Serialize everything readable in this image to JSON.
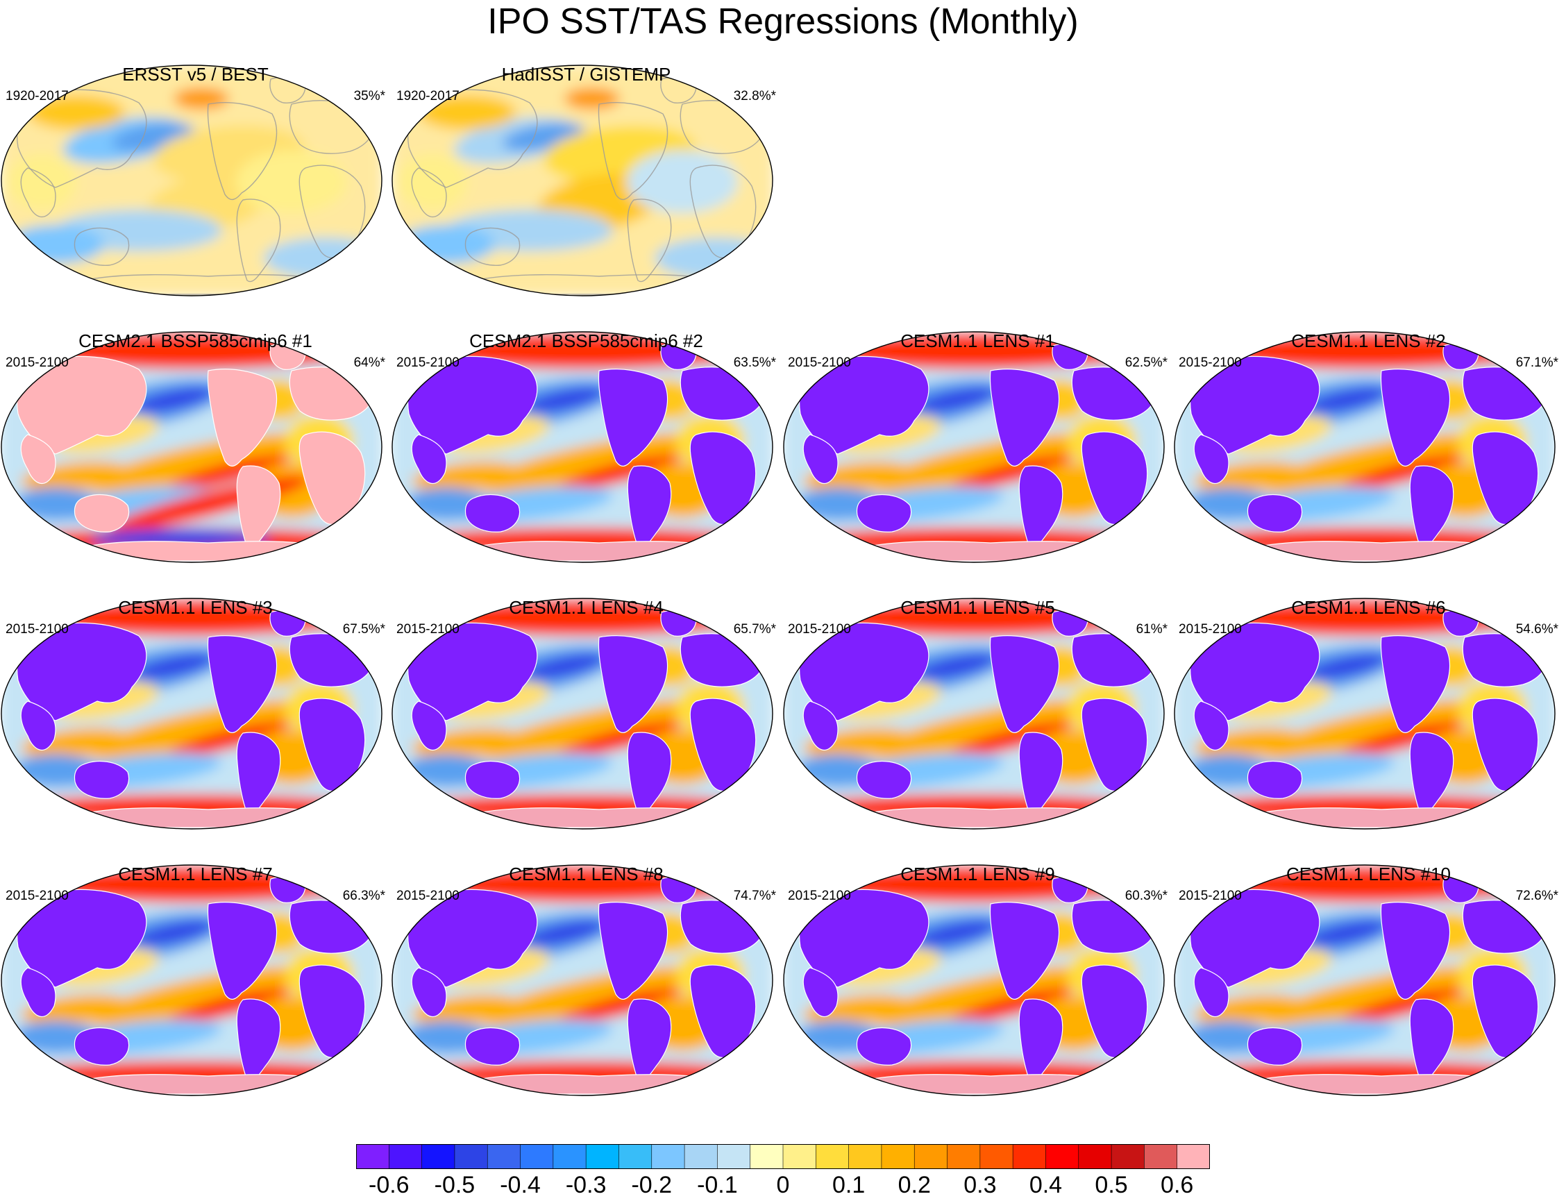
{
  "title": "IPO SST/TAS Regressions (Monthly)",
  "panels": [
    {
      "title": "ERSST v5 / BEST",
      "period": "1920-2017",
      "variance": "35%*",
      "row": 0,
      "col": 0,
      "pattern": "obs_a"
    },
    {
      "title": "HadISST / GISTEMP",
      "period": "1920-2017",
      "variance": "32.8%*",
      "row": 0,
      "col": 1,
      "pattern": "obs_b"
    },
    {
      "title": "CESM2.1 BSSP585cmip6 #1",
      "period": "2015-2100",
      "variance": "64%*",
      "row": 1,
      "col": 0,
      "pattern": "cesm2_a"
    },
    {
      "title": "CESM2.1 BSSP585cmip6 #2",
      "period": "2015-2100",
      "variance": "63.5%*",
      "row": 1,
      "col": 1,
      "pattern": "model"
    },
    {
      "title": "CESM1.1 LENS #1",
      "period": "2015-2100",
      "variance": "62.5%*",
      "row": 1,
      "col": 2,
      "pattern": "model"
    },
    {
      "title": "CESM1.1 LENS #2",
      "period": "2015-2100",
      "variance": "67.1%*",
      "row": 1,
      "col": 3,
      "pattern": "model"
    },
    {
      "title": "CESM1.1 LENS #3",
      "period": "2015-2100",
      "variance": "67.5%*",
      "row": 2,
      "col": 0,
      "pattern": "model"
    },
    {
      "title": "CESM1.1 LENS #4",
      "period": "2015-2100",
      "variance": "65.7%*",
      "row": 2,
      "col": 1,
      "pattern": "model"
    },
    {
      "title": "CESM1.1 LENS #5",
      "period": "2015-2100",
      "variance": "61%*",
      "row": 2,
      "col": 2,
      "pattern": "model"
    },
    {
      "title": "CESM1.1 LENS #6",
      "period": "2015-2100",
      "variance": "54.6%*",
      "row": 2,
      "col": 3,
      "pattern": "model"
    },
    {
      "title": "CESM1.1 LENS #7",
      "period": "2015-2100",
      "variance": "66.3%*",
      "row": 3,
      "col": 0,
      "pattern": "model"
    },
    {
      "title": "CESM1.1 LENS #8",
      "period": "2015-2100",
      "variance": "74.7%*",
      "row": 3,
      "col": 1,
      "pattern": "model"
    },
    {
      "title": "CESM1.1 LENS #9",
      "period": "2015-2100",
      "variance": "60.3%*",
      "row": 3,
      "col": 2,
      "pattern": "model"
    },
    {
      "title": "CESM1.1 LENS #10",
      "period": "2015-2100",
      "variance": "72.6%*",
      "row": 3,
      "col": 3,
      "pattern": "model"
    }
  ],
  "colorbar": {
    "colors": [
      "#7f1fff",
      "#4d14ff",
      "#1414ff",
      "#2d44e6",
      "#3a66f0",
      "#2d7aff",
      "#2a93ff",
      "#00b4ff",
      "#38bdf8",
      "#7cc6ff",
      "#a8d5f5",
      "#c5e4f5",
      "#ffffbf",
      "#fff08a",
      "#ffdd3c",
      "#ffc81e",
      "#ffb000",
      "#ff9a00",
      "#ff7d00",
      "#ff5a00",
      "#ff2e00",
      "#ff0000",
      "#e60000",
      "#c81414",
      "#e05a5a",
      "#ffb3b8"
    ],
    "ticks": [
      "-0.6",
      "-0.5",
      "-0.4",
      "-0.3",
      "-0.2",
      "-0.1",
      "0",
      "0.1",
      "0.2",
      "0.3",
      "0.4",
      "0.5",
      "0.6"
    ],
    "tick_positions": [
      1,
      3,
      5,
      7,
      9,
      11,
      13,
      15,
      17,
      19,
      21,
      23,
      25
    ]
  },
  "palette": {
    "land_mask": "#7f1fff",
    "land_mask_alt": "#ffb3b8",
    "strong_pos": "#ff2e00",
    "mid_pos": "#ffb000",
    "weak_pos": "#ffe070",
    "neutral": "#c5e4f5",
    "mid_neg": "#5aa0f0",
    "strong_neg": "#2d44e6",
    "outline": "#000000"
  }
}
